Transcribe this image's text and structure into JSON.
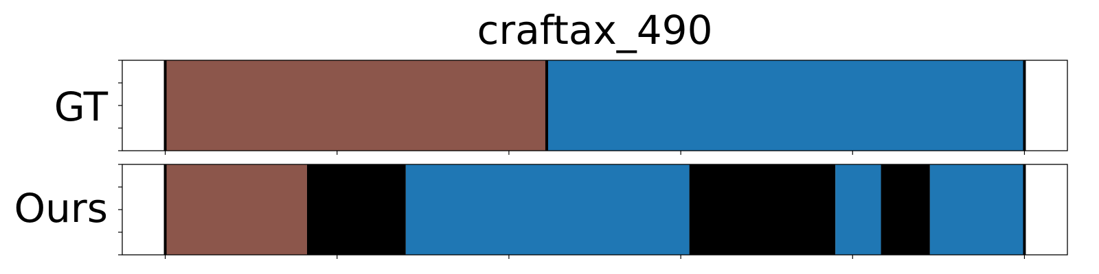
{
  "chart_data": {
    "type": "segmentation",
    "title": "craftax_490",
    "xlim": [
      -0.05,
      1.05
    ],
    "colors": {
      "brown": "#8c564b",
      "blue": "#1f77b4",
      "black": "#000000",
      "boundary": "#000000"
    },
    "rows": [
      {
        "label": "GT",
        "segments": [
          {
            "start": 0.0,
            "end": 0.444,
            "color": "brown"
          },
          {
            "start": 0.444,
            "end": 1.0,
            "color": "blue"
          }
        ],
        "boundaries": [
          0.0,
          0.444,
          1.0
        ]
      },
      {
        "label": "Ours",
        "segments": [
          {
            "start": 0.0,
            "end": 0.165,
            "color": "brown"
          },
          {
            "start": 0.165,
            "end": 0.28,
            "color": "black"
          },
          {
            "start": 0.28,
            "end": 0.61,
            "color": "blue"
          },
          {
            "start": 0.61,
            "end": 0.78,
            "color": "black"
          },
          {
            "start": 0.78,
            "end": 0.833,
            "color": "blue"
          },
          {
            "start": 0.833,
            "end": 0.89,
            "color": "black"
          },
          {
            "start": 0.89,
            "end": 1.0,
            "color": "blue"
          }
        ],
        "boundaries": [
          0.0,
          1.0
        ]
      }
    ],
    "x_ticks": [
      0.0,
      0.2,
      0.4,
      0.6,
      0.8,
      1.0
    ],
    "y_ticks_per_row": 5,
    "tick_labels_shown": false,
    "grid": false
  }
}
